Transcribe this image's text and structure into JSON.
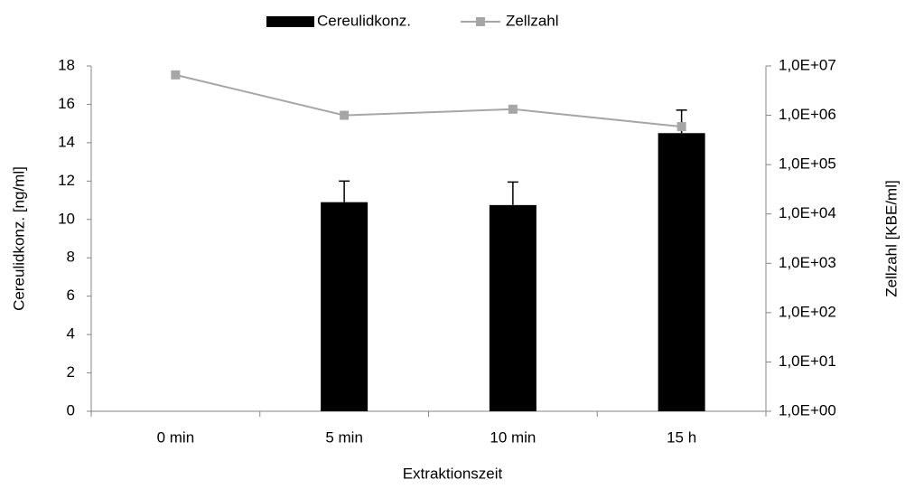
{
  "chart_data": {
    "type": "bar",
    "categories": [
      "0 min",
      "5 min",
      "10 min",
      "15 h"
    ],
    "series": [
      {
        "name": "Cereulidkonz.",
        "type": "bar",
        "color": "#000000",
        "values": [
          null,
          10.9,
          10.75,
          14.5
        ],
        "errors": [
          null,
          1.1,
          1.2,
          1.2
        ]
      },
      {
        "name": "Zellzahl",
        "type": "line",
        "axis": "y2",
        "color": "#a6a6a6",
        "values": [
          6600000,
          1000000,
          1330000,
          590000
        ]
      }
    ],
    "x_label": "Extraktionszeit",
    "y_label": "Cereulidkonz. [ng/ml]",
    "y2_label": "Zellzahl [KBE/ml]",
    "ylim": [
      0,
      18
    ],
    "yticks": [
      0,
      2,
      4,
      6,
      8,
      10,
      12,
      14,
      16,
      18
    ],
    "y2lim": [
      1,
      10000000
    ],
    "y2_log": true,
    "y2ticks": [
      {
        "value": 1,
        "label": "1,0E+00"
      },
      {
        "value": 10,
        "label": "1,0E+01"
      },
      {
        "value": 100,
        "label": "1,0E+02"
      },
      {
        "value": 1000,
        "label": "1,0E+03"
      },
      {
        "value": 10000,
        "label": "1,0E+04"
      },
      {
        "value": 100000,
        "label": "1,0E+05"
      },
      {
        "value": 1000000,
        "label": "1,0E+06"
      },
      {
        "value": 10000000,
        "label": "1,0E+07"
      }
    ],
    "legend": "top",
    "grid": false
  }
}
